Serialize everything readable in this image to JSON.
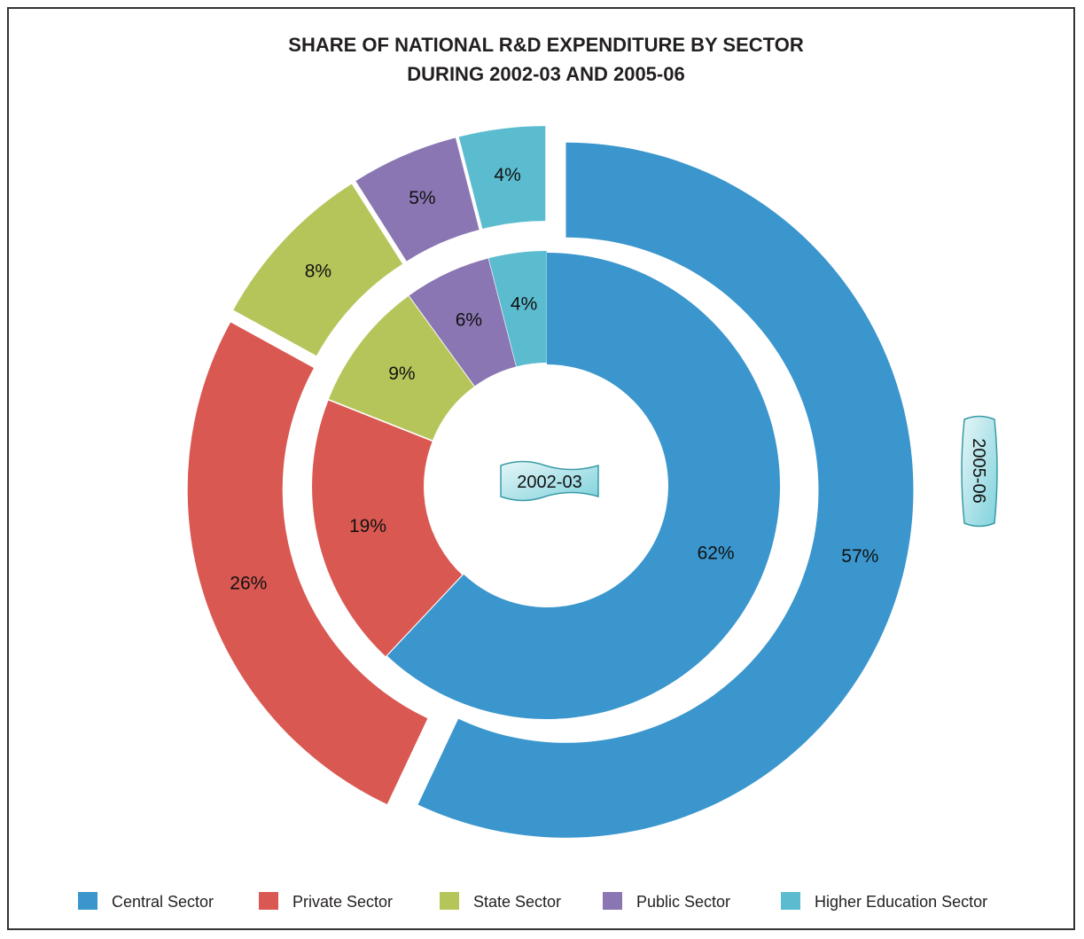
{
  "chart_data": {
    "type": "pie",
    "subtype": "nested-donut",
    "title": "SHARE OF NATIONAL R&D EXPENDITURE BY SECTOR",
    "subtitle": "DURING 2002-03 AND 2005-06",
    "categories": [
      "Central Sector",
      "Private Sector",
      "State Sector",
      "Public Sector",
      "Higher Education Sector"
    ],
    "colors": [
      "#3a96cd",
      "#d95852",
      "#b6c55a",
      "#8a76b2",
      "#5bbcd0"
    ],
    "series": [
      {
        "name": "2002-03",
        "ring": "inner",
        "values": [
          62,
          19,
          9,
          6,
          4
        ],
        "labels": [
          "62%",
          "19%",
          "9%",
          "6%",
          "4%"
        ]
      },
      {
        "name": "2005-06",
        "ring": "outer",
        "values": [
          57,
          26,
          8,
          5,
          4
        ],
        "labels": [
          "57%",
          "26%",
          "8%",
          "5%",
          "4%"
        ]
      }
    ],
    "legend_position": "bottom"
  }
}
